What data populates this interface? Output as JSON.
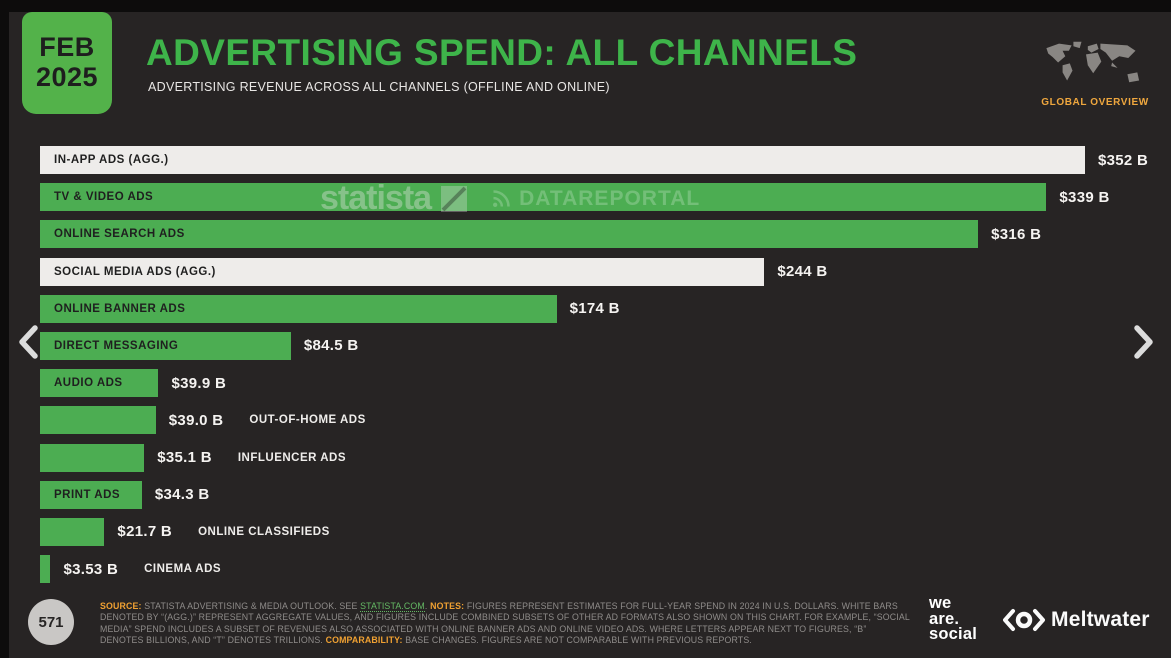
{
  "header": {
    "badge": {
      "month": "FEB",
      "year": "2025"
    },
    "title": "ADVERTISING SPEND: ALL CHANNELS",
    "subtitle": "ADVERTISING REVENUE ACROSS ALL CHANNELS (OFFLINE AND ONLINE)",
    "overview_label": "GLOBAL OVERVIEW"
  },
  "watermark": {
    "statista": "statista",
    "dataportal": "DATAREPORTAL"
  },
  "chart_data": {
    "type": "bar",
    "orientation": "horizontal",
    "title": "ADVERTISING SPEND: ALL CHANNELS",
    "unit": "U.S. dollars, billions",
    "xlim": [
      0,
      352
    ],
    "max_value": 352,
    "grid": false,
    "legend": "none",
    "categories": [
      "IN-APP ADS (AGG.)",
      "TV & VIDEO ADS",
      "ONLINE SEARCH ADS",
      "SOCIAL MEDIA ADS (AGG.)",
      "ONLINE BANNER ADS",
      "DIRECT MESSAGING",
      "AUDIO ADS",
      "OUT-OF-HOME ADS",
      "INFLUENCER ADS",
      "PRINT ADS",
      "ONLINE CLASSIFIEDS",
      "CINEMA ADS"
    ],
    "values": [
      352,
      339,
      316,
      244,
      174,
      84.5,
      39.9,
      39.0,
      35.1,
      34.3,
      21.7,
      3.53
    ],
    "rows": [
      {
        "label": "IN-APP ADS (AGG.)",
        "value": 352,
        "value_label": "$352 B",
        "bar_color": "white",
        "label_position": "inside"
      },
      {
        "label": "TV & VIDEO ADS",
        "value": 339,
        "value_label": "$339 B",
        "bar_color": "green",
        "label_position": "inside"
      },
      {
        "label": "ONLINE SEARCH ADS",
        "value": 316,
        "value_label": "$316 B",
        "bar_color": "green",
        "label_position": "inside"
      },
      {
        "label": "SOCIAL MEDIA ADS (AGG.)",
        "value": 244,
        "value_label": "$244 B",
        "bar_color": "white",
        "label_position": "inside"
      },
      {
        "label": "ONLINE BANNER ADS",
        "value": 174,
        "value_label": "$174 B",
        "bar_color": "green",
        "label_position": "inside"
      },
      {
        "label": "DIRECT MESSAGING",
        "value": 84.5,
        "value_label": "$84.5 B",
        "bar_color": "green",
        "label_position": "inside"
      },
      {
        "label": "AUDIO ADS",
        "value": 39.9,
        "value_label": "$39.9 B",
        "bar_color": "green",
        "label_position": "inside"
      },
      {
        "label": "OUT-OF-HOME ADS",
        "value": 39.0,
        "value_label": "$39.0 B",
        "bar_color": "green",
        "label_position": "outside"
      },
      {
        "label": "INFLUENCER ADS",
        "value": 35.1,
        "value_label": "$35.1 B",
        "bar_color": "green",
        "label_position": "outside"
      },
      {
        "label": "PRINT ADS",
        "value": 34.3,
        "value_label": "$34.3 B",
        "bar_color": "green",
        "label_position": "inside"
      },
      {
        "label": "ONLINE CLASSIFIEDS",
        "value": 21.7,
        "value_label": "$21.7 B",
        "bar_color": "green",
        "label_position": "outside"
      },
      {
        "label": "CINEMA ADS",
        "value": 3.53,
        "value_label": "$3.53 B",
        "bar_color": "green",
        "label_position": "outside"
      }
    ]
  },
  "footer": {
    "page_number": "571",
    "segments": [
      {
        "text": "SOURCE:",
        "style": "orange"
      },
      {
        "text": " STATISTA ADVERTISING & MEDIA OUTLOOK. SEE ",
        "style": "gray"
      },
      {
        "text": "STATISTA.COM",
        "style": "link"
      },
      {
        "text": ". ",
        "style": "gray"
      },
      {
        "text": "NOTES:",
        "style": "orange"
      },
      {
        "text": " FIGURES REPRESENT ESTIMATES FOR FULL-YEAR SPEND IN 2024 IN U.S. DOLLARS. WHITE BARS DENOTED BY “(AGG.)” REPRESENT AGGREGATE VALUES, AND FIGURES INCLUDE COMBINED SUBSETS OF OTHER AD FORMATS ALSO SHOWN ON THIS CHART. FOR EXAMPLE, “SOCIAL MEDIA” SPEND INCLUDES A SUBSET OF REVENUES ALSO ASSOCIATED WITH ONLINE BANNER ADS AND ONLINE VIDEO ADS. WHERE LETTERS APPEAR NEXT TO FIGURES,  “B” DENOTES BILLIONS, AND “T” DENOTES TRILLIONS. ",
        "style": "gray"
      },
      {
        "text": "COMPARABILITY:",
        "style": "orange"
      },
      {
        "text": " BASE CHANGES. FIGURES ARE NOT COMPARABLE WITH PREVIOUS REPORTS.",
        "style": "gray"
      }
    ],
    "logos": {
      "we_are_social": [
        "we",
        "are.",
        "social"
      ],
      "meltwater": "Meltwater"
    }
  },
  "colors": {
    "background": "#272424",
    "bar_green": "#4cad52",
    "bar_white": "#eeecea",
    "title_green": "#3eb44a",
    "badge_green": "#53b24a",
    "orange": "#f0a132",
    "link_green": "#64b964"
  }
}
